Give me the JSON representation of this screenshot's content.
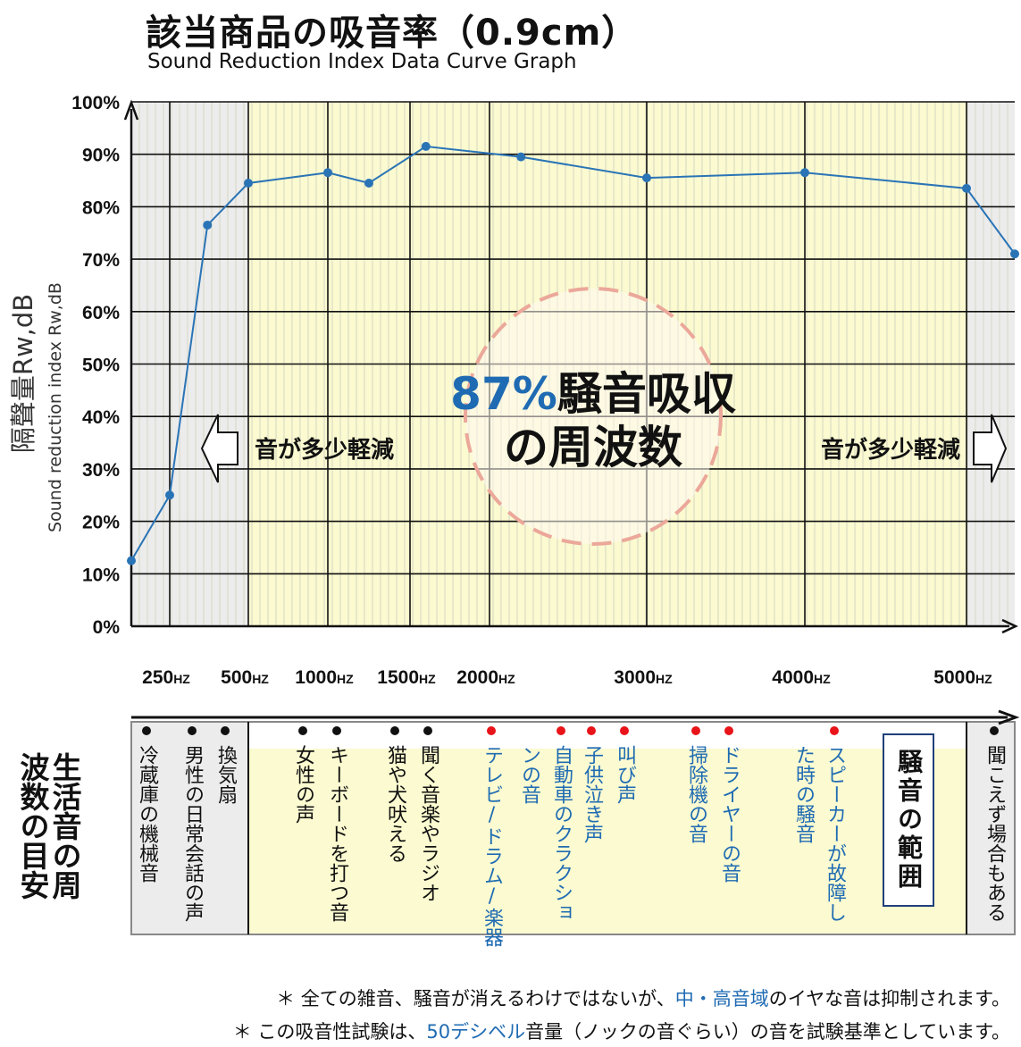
{
  "header": {
    "title": "該当商品の吸音率（0.9cm）",
    "subtitle": "Sound Reduction Index Data Curve Graph"
  },
  "chart_data": {
    "type": "line",
    "ylabel_ja": "隔聲量Rw,dB",
    "ylabel_en": "Sound reduction index Rw,dB",
    "y_ticks": [
      "100%",
      "90%",
      "80%",
      "70%",
      "60%",
      "50%",
      "40%",
      "30%",
      "20%",
      "10%",
      "0%"
    ],
    "ylim": [
      0,
      100
    ],
    "x_labels": [
      {
        "text": "250HZ",
        "x": 250
      },
      {
        "text": "500HZ",
        "x": 500
      },
      {
        "text": "1000HZ",
        "x": 1000
      },
      {
        "text": "1500HZ",
        "x": 1500
      },
      {
        "text": "2000HZ",
        "x": 2000
      },
      {
        "text": "3000HZ",
        "x": 3000
      },
      {
        "text": "4000HZ",
        "x": 4000
      },
      {
        "text": "5000HZ",
        "x": 5000
      }
    ],
    "series": [
      {
        "points": [
          {
            "x": 125,
            "y": 12.5
          },
          {
            "x": 250,
            "y": 25
          },
          {
            "x": 370,
            "y": 76.5
          },
          {
            "x": 500,
            "y": 84.5
          },
          {
            "x": 1000,
            "y": 86.5
          },
          {
            "x": 1250,
            "y": 84.5
          },
          {
            "x": 1600,
            "y": 91.5
          },
          {
            "x": 2200,
            "y": 89.5
          },
          {
            "x": 3000,
            "y": 85.5
          },
          {
            "x": 4000,
            "y": 86.5
          },
          {
            "x": 5000,
            "y": 83.5
          },
          {
            "x": 6300,
            "y": 71
          }
        ]
      }
    ],
    "grid": true,
    "annotations": {
      "center_percent": "87%",
      "center_text_1": "騒音吸収",
      "center_text_2": "の周波数",
      "left_note": "音が多少軽減",
      "right_note": "音が多少軽減"
    }
  },
  "life_table": {
    "side_label": "生活音の周波数の目安",
    "range_label": "騒音の範囲",
    "items": [
      {
        "text": "冷蔵庫の機械音",
        "dot": "black",
        "color": "black"
      },
      {
        "text": "男性の日常会話の声",
        "dot": "black",
        "color": "black"
      },
      {
        "text": "換気扇",
        "dot": "black",
        "color": "black"
      },
      {
        "text": "女性の声",
        "dot": "black",
        "color": "black"
      },
      {
        "text": "キーボードを打つ音",
        "dot": "black",
        "color": "black"
      },
      {
        "text": "猫や犬吠える",
        "dot": "black",
        "color": "black"
      },
      {
        "text": "聞く音楽やラジオ",
        "dot": "black",
        "color": "black"
      },
      {
        "text": "テレビ/ドラム/楽器",
        "dot": "red",
        "color": "blue"
      },
      {
        "text": "ンの音",
        "dot": "none",
        "color": "blue"
      },
      {
        "text": "自動車のクラクショ",
        "dot": "red",
        "color": "blue"
      },
      {
        "text": "子供泣き声",
        "dot": "red",
        "color": "blue"
      },
      {
        "text": "叫び声",
        "dot": "red",
        "color": "blue"
      },
      {
        "text": "掃除機の音",
        "dot": "red",
        "color": "blue"
      },
      {
        "text": "ドライヤーの音",
        "dot": "red",
        "color": "blue"
      },
      {
        "text": "た時の騒音",
        "dot": "none",
        "color": "blue"
      },
      {
        "text": "スピーカーが故障し",
        "dot": "red",
        "color": "blue"
      },
      {
        "text": "聞こえず場合もある",
        "dot": "black",
        "color": "black"
      }
    ]
  },
  "notes": {
    "line1_a": "＊ 全ての雑音、騒音が消えるわけではないが、",
    "line1_b": "中・高音域",
    "line1_c": "のイヤな音は抑制されます。",
    "line2_a": "＊ この吸音性試験は、",
    "line2_b": "50デシベル",
    "line2_c": "音量（ノックの音ぐらい）の音を試験基準としています。"
  },
  "colors": {
    "line": "#2a74b6",
    "fill_main": "#fbfad0",
    "fill_side": "#ececec",
    "accent_blue": "#1f6bb3",
    "dot_red": "#e8141a",
    "circle": "#eba89a"
  }
}
